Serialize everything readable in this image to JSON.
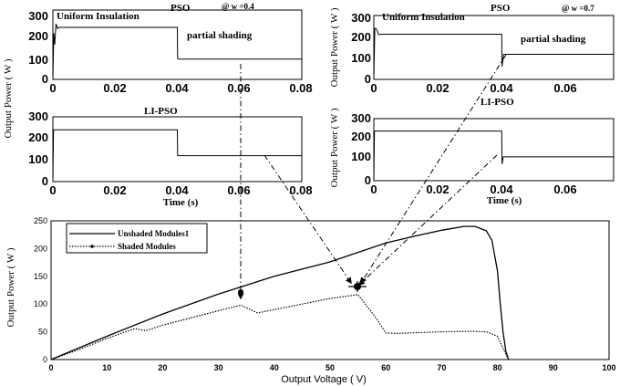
{
  "chart_data": [
    {
      "id": "pso_w04",
      "type": "line",
      "title": "PSO",
      "annotation_top": "@ w =0.4",
      "label_uniform": "Uniform Insulation",
      "label_partial": "partial shading",
      "ylabel": "",
      "xlim": [
        0,
        0.08
      ],
      "ylim": [
        0,
        300
      ],
      "xticks": [
        "0",
        "0.02",
        "0.04",
        "0.06",
        "0.08"
      ],
      "yticks": [
        "0",
        "100",
        "200",
        "300"
      ],
      "x": [
        0,
        0.0003,
        0.0006,
        0.001,
        0.0015,
        0.002,
        0.04,
        0.0401,
        0.0405,
        0.08
      ],
      "y": [
        0,
        200,
        150,
        240,
        220,
        225,
        225,
        90,
        88,
        88
      ]
    },
    {
      "id": "lipso_w04",
      "type": "line",
      "title": "LI-PSO",
      "xlabel": "Time  (s)",
      "xlim": [
        0,
        0.08
      ],
      "ylim": [
        0,
        300
      ],
      "xticks": [
        "0",
        "0.02",
        "0.04",
        "0.06",
        "0.08"
      ],
      "yticks": [
        "0",
        "100",
        "200",
        "300"
      ],
      "x": [
        0,
        0.0002,
        0.04,
        0.0401,
        0.08
      ],
      "y": [
        0,
        240,
        240,
        120,
        120
      ]
    },
    {
      "id": "pso_w07",
      "type": "line",
      "title": "PSO",
      "annotation_top": "@ w =0.7",
      "label_uniform": "Uniform Insulation",
      "label_partial": "partial shading",
      "ylabel": "Output Power ( W )",
      "xlim": [
        0,
        0.075
      ],
      "ylim": [
        0,
        300
      ],
      "xticks": [
        "0",
        "0.02",
        "0.04",
        "0.06"
      ],
      "yticks": [
        "0",
        "100",
        "200",
        "300"
      ],
      "x": [
        0,
        0.0003,
        0.0008,
        0.0015,
        0.0025,
        0.04,
        0.0401,
        0.0406,
        0.075
      ],
      "y": [
        0,
        240,
        238,
        210,
        212,
        212,
        60,
        118,
        118
      ]
    },
    {
      "id": "lipso_w07",
      "type": "line",
      "title": "LI-PSO",
      "xlabel": "Time  (s)",
      "ylabel": "Output Power ( W )",
      "xlim": [
        0,
        0.075
      ],
      "ylim": [
        0,
        300
      ],
      "xticks": [
        "0",
        "0.02",
        "0.04",
        "0.06"
      ],
      "yticks": [
        "0",
        "100",
        "200",
        "300"
      ],
      "x": [
        0,
        0.0002,
        0.04,
        0.0401,
        0.0405,
        0.075
      ],
      "y": [
        0,
        240,
        240,
        80,
        115,
        115
      ]
    },
    {
      "id": "pv_curve",
      "type": "line",
      "xlabel": "Output Voltage ( V)",
      "ylabel": "Output Power ( W )",
      "xlim": [
        0,
        100
      ],
      "ylim": [
        0,
        250
      ],
      "xticks": [
        "0",
        "10",
        "20",
        "30",
        "40",
        "50",
        "60",
        "70",
        "80",
        "90",
        "100"
      ],
      "yticks": [
        "0",
        "50",
        "100",
        "150",
        "200",
        "250"
      ],
      "series": [
        {
          "name": "Unshaded Modules1",
          "style": "solid",
          "x": [
            0,
            10,
            20,
            30,
            40,
            50,
            60,
            65,
            70,
            74,
            76,
            78,
            79,
            80,
            80.5,
            81,
            81.5,
            82
          ],
          "y": [
            0,
            42,
            82,
            118,
            150,
            176,
            210,
            222,
            233,
            240,
            240,
            232,
            215,
            160,
            100,
            50,
            15,
            0
          ]
        },
        {
          "name": "Shaded Modules",
          "style": "dotted",
          "x": [
            0,
            5,
            10,
            15,
            17,
            20,
            25,
            30,
            34,
            37,
            40,
            45,
            50,
            55,
            58,
            60,
            62,
            70,
            75,
            78,
            80,
            81,
            82
          ],
          "y": [
            0,
            18,
            38,
            56,
            52,
            62,
            75,
            88,
            98,
            84,
            90,
            100,
            110,
            117,
            78,
            48,
            47,
            50,
            51,
            50,
            42,
            20,
            0
          ]
        }
      ]
    }
  ]
}
